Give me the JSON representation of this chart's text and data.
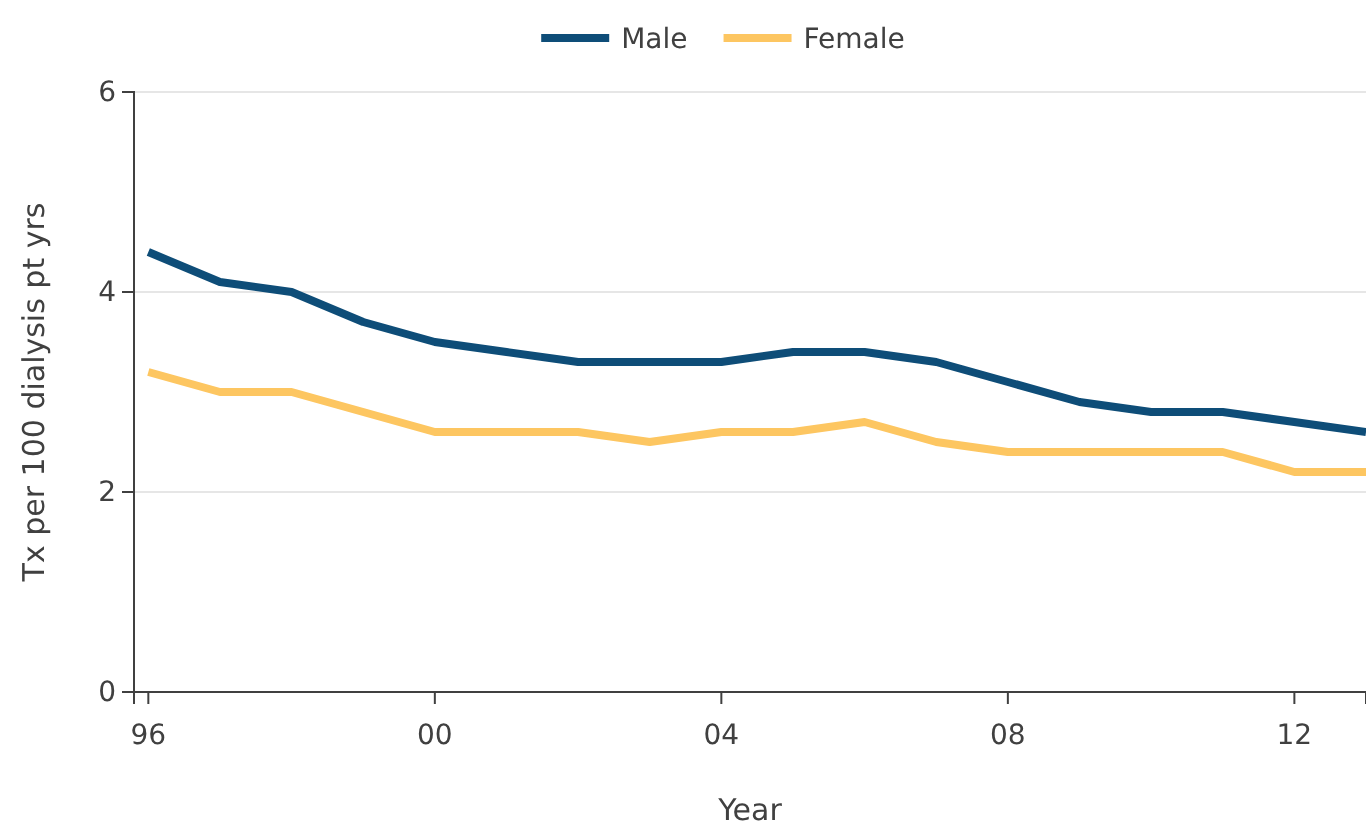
{
  "chart_data": {
    "type": "line",
    "xlabel": "Year",
    "ylabel": "Tx per 100 dialysis pt yrs",
    "x": [
      1996,
      1997,
      1998,
      1999,
      2000,
      2001,
      2002,
      2003,
      2004,
      2005,
      2006,
      2007,
      2008,
      2009,
      2010,
      2011,
      2012,
      2013
    ],
    "series": [
      {
        "name": "Male",
        "color": "#0e4d78",
        "values": [
          4.4,
          4.1,
          4.0,
          3.7,
          3.5,
          3.4,
          3.3,
          3.3,
          3.3,
          3.4,
          3.4,
          3.3,
          3.1,
          2.9,
          2.8,
          2.8,
          2.7,
          2.6
        ]
      },
      {
        "name": "Female",
        "color": "#fdc661",
        "values": [
          3.2,
          3.0,
          3.0,
          2.8,
          2.6,
          2.6,
          2.6,
          2.5,
          2.6,
          2.6,
          2.7,
          2.5,
          2.4,
          2.4,
          2.4,
          2.4,
          2.2,
          2.2
        ]
      }
    ],
    "xlim": [
      1995.8,
      2013
    ],
    "xticks": [
      {
        "value": 1996,
        "label": "96"
      },
      {
        "value": 2000,
        "label": "00"
      },
      {
        "value": 2004,
        "label": "04"
      },
      {
        "value": 2008,
        "label": "08"
      },
      {
        "value": 2012,
        "label": "12"
      }
    ],
    "ylim": [
      0,
      6
    ],
    "yticks": [
      0,
      2,
      4,
      6
    ],
    "grid": "y",
    "legend": "top",
    "marker": "none",
    "line_style": "solid"
  }
}
